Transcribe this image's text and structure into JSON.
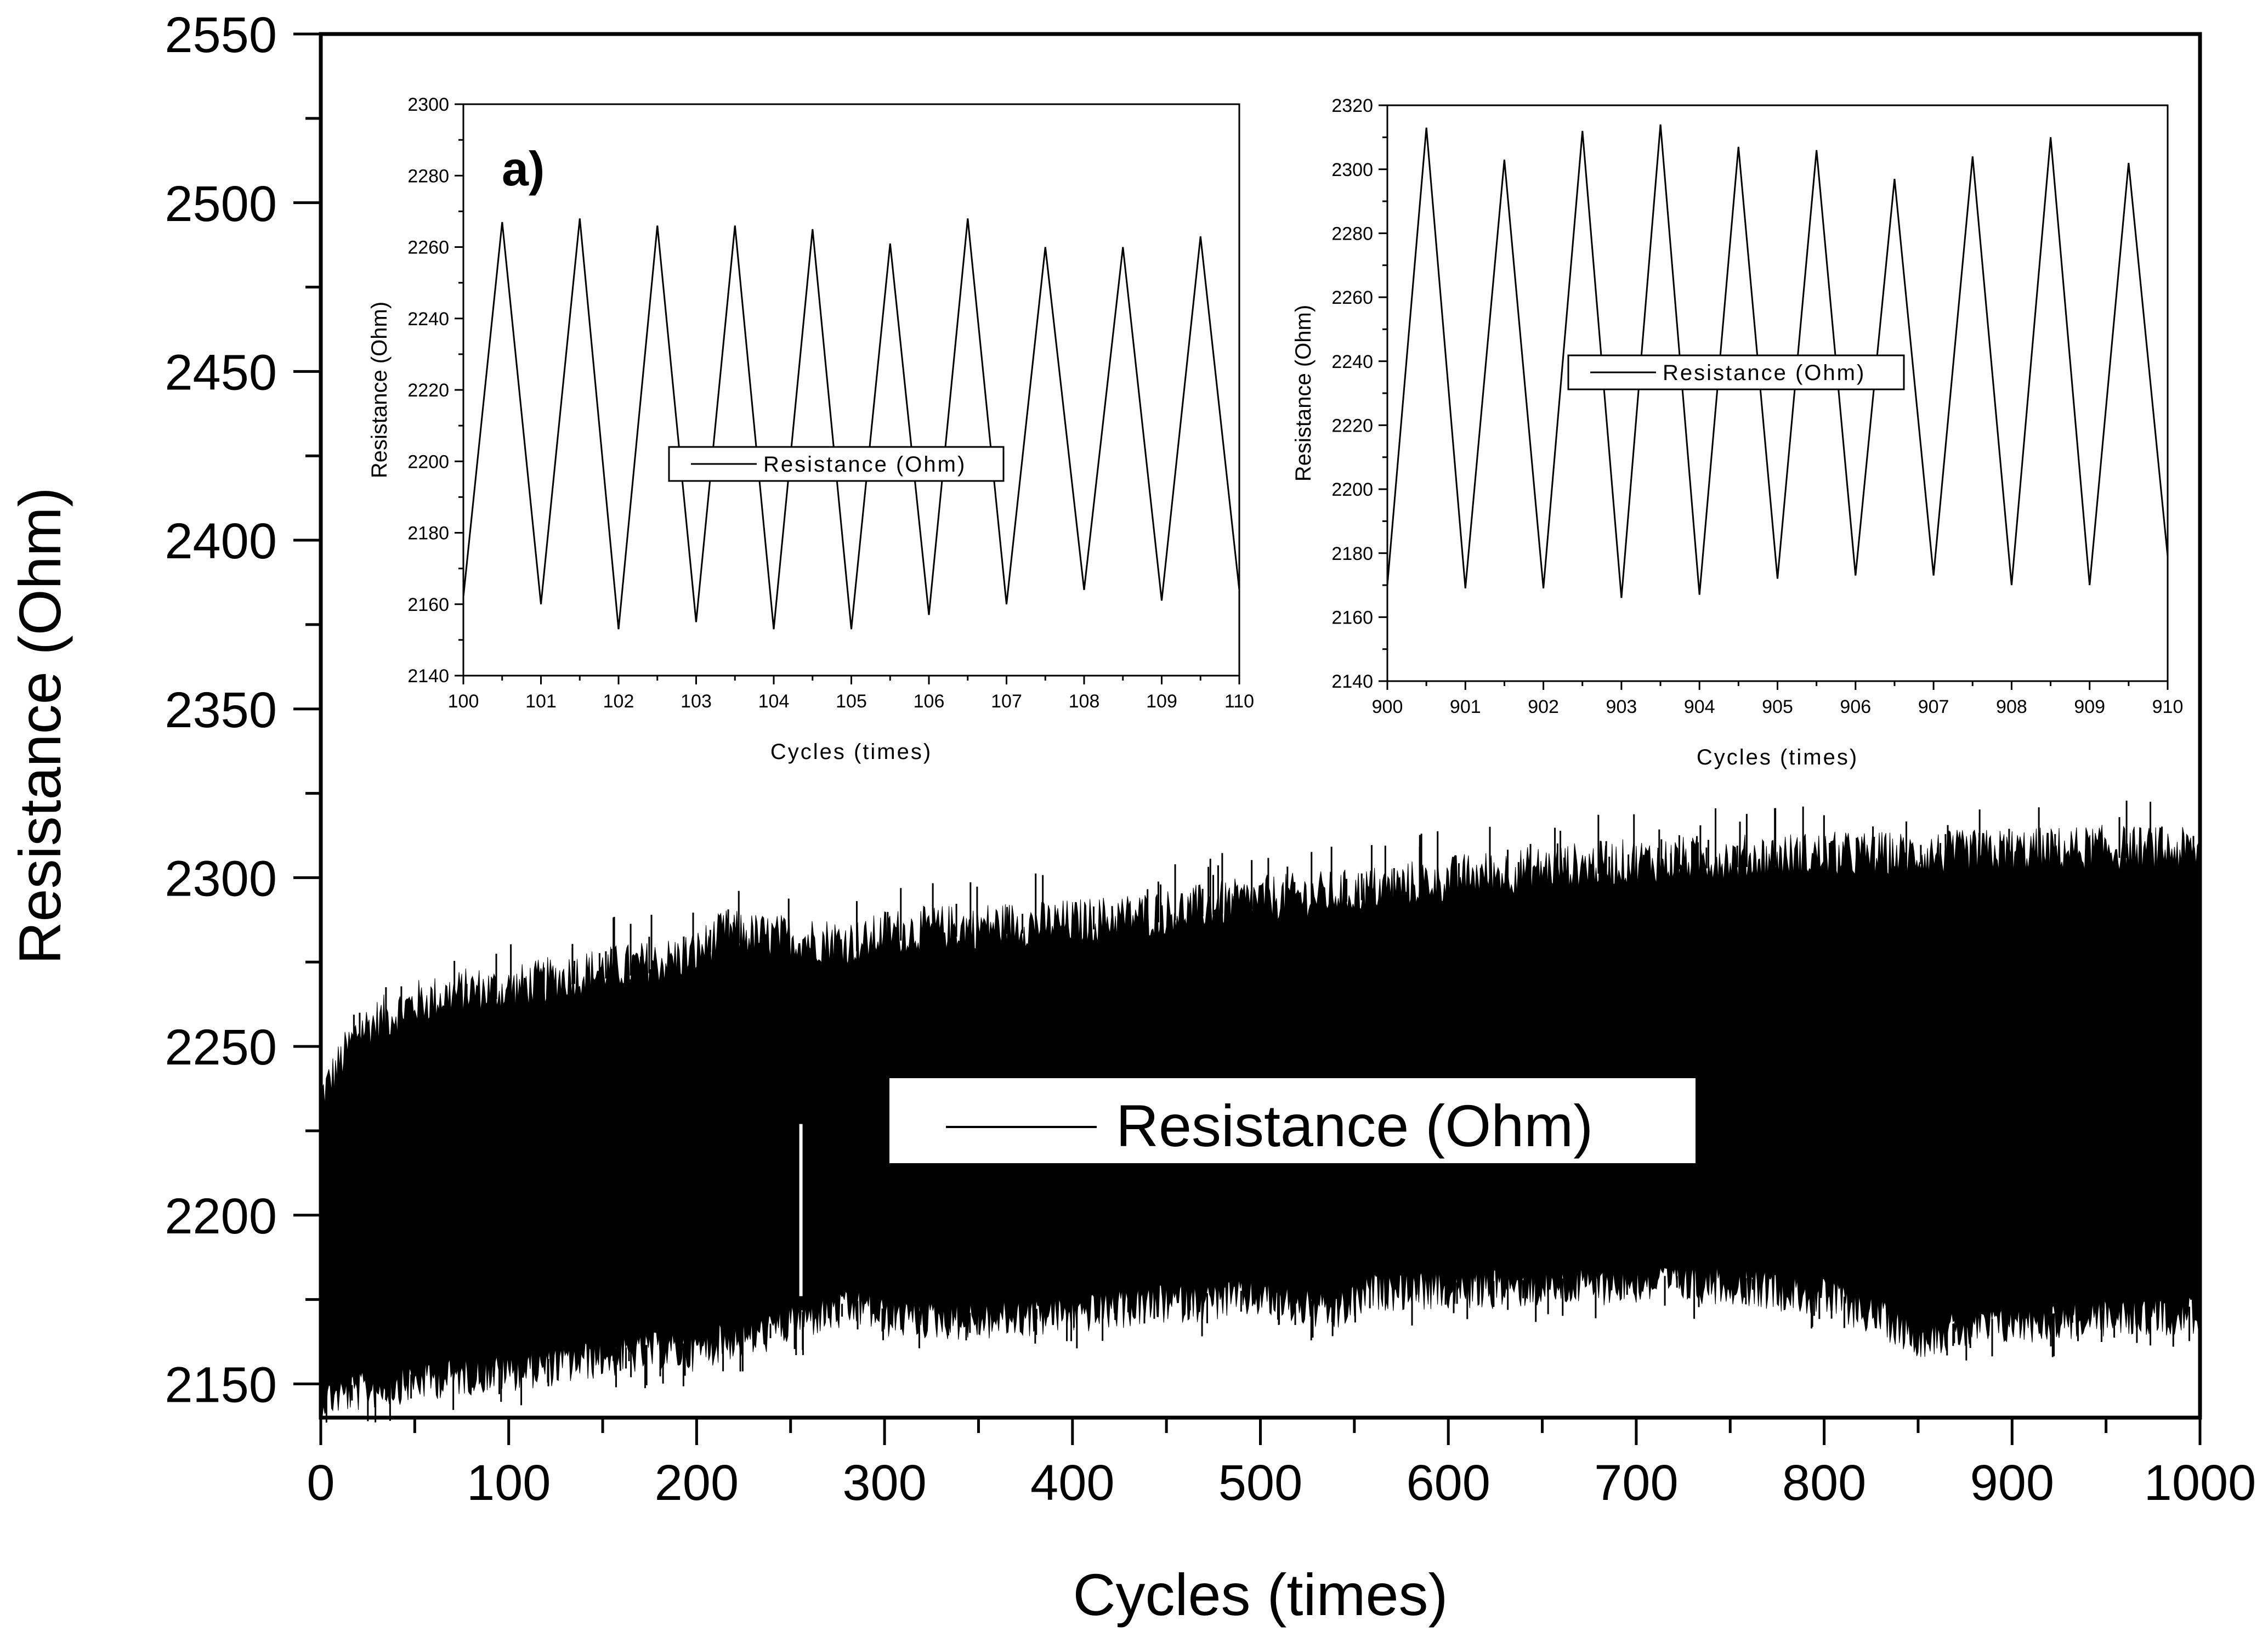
{
  "chart_data": [
    {
      "id": "main",
      "type": "line",
      "xlabel": "Cycles (times)",
      "ylabel": "Resistance (Ohm)",
      "xlim": [
        0,
        1000
      ],
      "ylim": [
        2140,
        2550
      ],
      "xticks": [
        0,
        100,
        200,
        300,
        400,
        500,
        600,
        700,
        800,
        900,
        1000
      ],
      "yticks": [
        2150,
        2200,
        2250,
        2300,
        2350,
        2400,
        2450,
        2500,
        2550
      ],
      "legend": {
        "position": "center",
        "entries": [
          "Resistance (Ohm)"
        ]
      },
      "color": "#000000",
      "series": [
        {
          "name": "Resistance (Ohm)",
          "upper_envelope": {
            "x": [
              0,
              20,
              50,
              80,
              100,
              130,
              150,
              180,
              200,
              215,
              230,
              260,
              290,
              300,
              350,
              400,
              450,
              500,
              550,
              600,
              650,
              700,
              750,
              800,
              850,
              900,
              950,
              1000
            ],
            "y": [
              2232,
              2252,
              2260,
              2264,
              2264,
              2268,
              2270,
              2272,
              2275,
              2281,
              2280,
              2279,
              2278,
              2281,
              2283,
              2284,
              2287,
              2291,
              2293,
              2297,
              2300,
              2302,
              2303,
              2304,
              2304,
              2305,
              2306,
              2305
            ]
          },
          "lower_envelope": {
            "x": [
              0,
              20,
              50,
              80,
              100,
              130,
              150,
              180,
              200,
              215,
              230,
              260,
              290,
              300,
              350,
              400,
              450,
              500,
              540,
              560,
              600,
              650,
              700,
              750,
              800,
              830,
              850,
              870,
              900,
              950,
              1000
            ],
            "y": [
              2148,
              2150,
              2153,
              2155,
              2156,
              2158,
              2160,
              2162,
              2162,
              2165,
              2166,
              2172,
              2175,
              2172,
              2171,
              2173,
              2176,
              2178,
              2173,
              2180,
              2180,
              2181,
              2182,
              2182,
              2178,
              2172,
              2166,
              2168,
              2170,
              2172,
              2173
            ]
          }
        }
      ]
    },
    {
      "id": "inset-left",
      "type": "line",
      "label": "a)",
      "xlabel": "Cycles (times)",
      "ylabel": "Resistance (Ohm)",
      "xlim": [
        100,
        110
      ],
      "ylim": [
        2140,
        2300
      ],
      "xticks": [
        100,
        101,
        102,
        103,
        104,
        105,
        106,
        107,
        108,
        109,
        110
      ],
      "yticks": [
        2140,
        2160,
        2180,
        2200,
        2220,
        2240,
        2260,
        2280,
        2300
      ],
      "legend": {
        "position": "center",
        "entries": [
          "Resistance (Ohm)"
        ]
      },
      "series": [
        {
          "name": "Resistance (Ohm)",
          "x": [
            100,
            100.5,
            101,
            101.5,
            102,
            102.5,
            103,
            103.5,
            104,
            104.5,
            105,
            105.5,
            106,
            106.5,
            107,
            107.5,
            108,
            108.5,
            109,
            109.5,
            110
          ],
          "y": [
            2162,
            2267,
            2160,
            2268,
            2153,
            2266,
            2155,
            2266,
            2153,
            2265,
            2153,
            2261,
            2157,
            2268,
            2160,
            2260,
            2164,
            2260,
            2161,
            2263,
            2164
          ]
        }
      ]
    },
    {
      "id": "inset-right",
      "type": "line",
      "xlabel": "Cycles (times)",
      "ylabel": "Resistance (Ohm)",
      "xlim": [
        900,
        910
      ],
      "ylim": [
        2140,
        2320
      ],
      "xticks": [
        900,
        901,
        902,
        903,
        904,
        905,
        906,
        907,
        908,
        909,
        910
      ],
      "yticks": [
        2140,
        2160,
        2180,
        2200,
        2220,
        2240,
        2260,
        2280,
        2300,
        2320
      ],
      "legend": {
        "position": "center",
        "entries": [
          "Resistance (Ohm)"
        ]
      },
      "series": [
        {
          "name": "Resistance (Ohm)",
          "x": [
            900,
            900.5,
            901,
            901.5,
            902,
            902.5,
            903,
            903.5,
            904,
            904.5,
            905,
            905.5,
            906,
            906.5,
            907,
            907.5,
            908,
            908.5,
            909,
            909.5,
            910
          ],
          "y": [
            2170,
            2313,
            2169,
            2303,
            2169,
            2312,
            2166,
            2314,
            2167,
            2307,
            2172,
            2306,
            2173,
            2297,
            2173,
            2304,
            2170,
            2310,
            2170,
            2302,
            2179
          ]
        }
      ]
    }
  ]
}
